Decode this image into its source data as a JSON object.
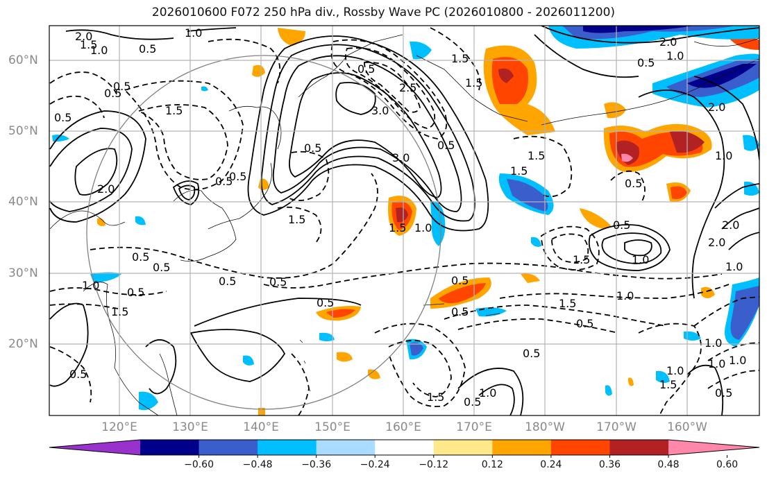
{
  "title": "2026010600 F072 250 hPa div., Rossby Wave PC (2026010800 - 2026011200)",
  "axes": {
    "latitude_labels": [
      "60°N",
      "50°N",
      "40°N",
      "30°N",
      "20°N"
    ],
    "longitude_labels": [
      "120°E",
      "130°E",
      "140°E",
      "150°E",
      "160°E",
      "170°E",
      "180°W",
      "170°W",
      "160°W"
    ],
    "label_color": "#8a8a8a",
    "grid_color": "#b4b4b4"
  },
  "colorbar": {
    "ticks": [
      "−0.60",
      "−0.48",
      "−0.36",
      "−0.24",
      "−0.12",
      "0.12",
      "0.24",
      "0.36",
      "0.48",
      "0.60"
    ],
    "colors": [
      "#9932cc",
      "#00008b",
      "#3a5fcd",
      "#00bfff",
      "#aadcff",
      "#ffffff",
      "#ffe88a",
      "#ffa500",
      "#ff4500",
      "#b22222",
      "#ff88aa"
    ]
  },
  "contour_labels": {
    "solid": [
      "2.0",
      "1.5",
      "1.0",
      "0.5",
      "2.0",
      "1.0",
      "0.5",
      "1.0",
      "1.5",
      "2.0",
      "0.5",
      "0.5",
      "1.0",
      "0.5",
      "1.0",
      "1.5",
      "1.0",
      "1.0",
      "3.0",
      "2.0",
      "1.0",
      "0.5",
      "2.0",
      "2.0",
      "1.0",
      "1.0"
    ],
    "dashed": [
      "0.5",
      "0.5",
      "0.5",
      "1.5",
      "0.5",
      "0.5",
      "0.5",
      "1.5",
      "0.5",
      "3.0",
      "2.5",
      "1.5",
      "0.5",
      "1.5",
      "1.5",
      "1.5",
      "1.5",
      "0.5",
      "0.5",
      "0.5",
      "0.5",
      "1.0",
      "0.5",
      "0.5",
      "1.5",
      "0.5",
      "1.5",
      "0.5",
      "1.5",
      "0.5",
      "1.0",
      "1.0",
      "1.0",
      "0.5",
      "0.5"
    ]
  }
}
